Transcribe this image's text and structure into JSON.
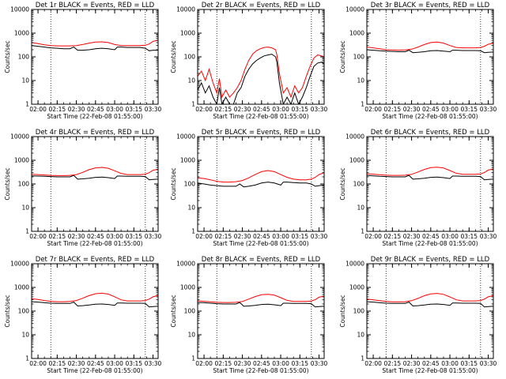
{
  "chart_data": {
    "type": "line",
    "scale": "log",
    "ylim": [
      1,
      10000
    ],
    "ytick_labels": [
      "1",
      "10",
      "100",
      "1000",
      "10000"
    ],
    "xtick_labels": [
      "02:00",
      "02:15",
      "02:30",
      "02:45",
      "03:00",
      "03:15",
      "03:30"
    ],
    "xlabel": "Start Time (22-Feb-08 01:55:00)",
    "ylabel": "Counts/sec",
    "x_range_minutes_after_start": [
      0,
      99
    ],
    "dotted_vertical_lines_minutes": [
      15,
      89
    ],
    "colors": {
      "events": "#000000",
      "lld": "#ff0000"
    },
    "panels": [
      {
        "title": "Det 1r BLACK = Events, RED = LLD",
        "series": [
          {
            "name": "Events",
            "x": [
              0,
              5,
              10,
              15,
              20,
              25,
              30,
              33,
              36,
              40,
              45,
              50,
              55,
              60,
              65,
              67,
              70,
              75,
              80,
              85,
              89,
              92,
              95,
              99
            ],
            "y": [
              300,
              280,
              260,
              240,
              230,
              220,
              220,
              260,
              190,
              190,
              200,
              220,
              230,
              220,
              200,
              260,
              260,
              250,
              250,
              250,
              230,
              180,
              190,
              190
            ]
          },
          {
            "name": "LLD",
            "x": [
              0,
              5,
              10,
              15,
              20,
              25,
              30,
              35,
              40,
              45,
              50,
              55,
              60,
              65,
              70,
              75,
              80,
              85,
              89,
              92,
              95,
              99
            ],
            "y": [
              400,
              360,
              320,
              300,
              290,
              290,
              290,
              300,
              330,
              380,
              420,
              430,
              400,
              330,
              300,
              300,
              300,
              300,
              310,
              350,
              450,
              500
            ]
          }
        ]
      },
      {
        "title": "Det 2r BLACK = Events, RED = LLD",
        "series": [
          {
            "name": "Events",
            "x": [
              0,
              3,
              6,
              9,
              12,
              15,
              17,
              19,
              22,
              25,
              28,
              31,
              34,
              37,
              40,
              43,
              46,
              49,
              52,
              55,
              58,
              61,
              62,
              64,
              67,
              70,
              73,
              76,
              79,
              82,
              85,
              88,
              91,
              94,
              97,
              99
            ],
            "y": [
              4,
              8,
              3,
              6,
              2,
              1,
              5,
              1,
              2,
              1,
              1,
              3,
              5,
              15,
              30,
              50,
              70,
              90,
              110,
              120,
              130,
              100,
              60,
              8,
              1,
              2,
              1,
              3,
              1,
              2,
              5,
              15,
              40,
              55,
              60,
              50
            ]
          },
          {
            "name": "LLD",
            "x": [
              0,
              3,
              6,
              9,
              12,
              15,
              17,
              19,
              22,
              25,
              28,
              31,
              34,
              37,
              40,
              43,
              46,
              49,
              52,
              55,
              58,
              61,
              62,
              64,
              67,
              70,
              73,
              76,
              79,
              82,
              85,
              88,
              91,
              94,
              97,
              99
            ],
            "y": [
              15,
              25,
              10,
              30,
              8,
              3,
              12,
              2,
              4,
              2,
              3,
              5,
              10,
              30,
              70,
              130,
              180,
              220,
              250,
              260,
              240,
              200,
              120,
              20,
              3,
              5,
              2,
              6,
              3,
              5,
              15,
              40,
              90,
              120,
              110,
              100
            ]
          }
        ]
      },
      {
        "title": "Det 3r BLACK = Events, RED = LLD",
        "series": [
          {
            "name": "Events",
            "x": [
              0,
              5,
              10,
              15,
              20,
              25,
              30,
              33,
              36,
              40,
              45,
              50,
              55,
              60,
              65,
              67,
              70,
              75,
              80,
              85,
              89,
              92,
              95,
              99
            ],
            "y": [
              200,
              190,
              180,
              175,
              170,
              165,
              165,
              190,
              150,
              155,
              165,
              180,
              185,
              175,
              165,
              190,
              190,
              185,
              185,
              185,
              180,
              150,
              155,
              160
            ]
          },
          {
            "name": "LLD",
            "x": [
              0,
              5,
              10,
              15,
              20,
              25,
              30,
              35,
              40,
              45,
              50,
              55,
              60,
              65,
              70,
              75,
              80,
              85,
              89,
              92,
              95,
              99
            ],
            "y": [
              260,
              240,
              220,
              200,
              195,
              190,
              195,
              210,
              260,
              330,
              400,
              420,
              380,
              300,
              250,
              240,
              240,
              240,
              250,
              280,
              340,
              380
            ]
          }
        ]
      },
      {
        "title": "Det 4r BLACK = Events, RED = LLD",
        "series": [
          {
            "name": "Events",
            "x": [
              0,
              5,
              10,
              15,
              20,
              25,
              30,
              33,
              36,
              40,
              45,
              50,
              55,
              60,
              65,
              67,
              70,
              75,
              80,
              85,
              89,
              92,
              95,
              99
            ],
            "y": [
              220,
              215,
              210,
              205,
              200,
              200,
              200,
              230,
              160,
              165,
              175,
              190,
              195,
              185,
              170,
              215,
              215,
              210,
              210,
              210,
              205,
              150,
              155,
              160
            ]
          },
          {
            "name": "LLD",
            "x": [
              0,
              5,
              10,
              15,
              20,
              25,
              30,
              35,
              40,
              45,
              50,
              55,
              60,
              65,
              70,
              75,
              80,
              85,
              89,
              92,
              95,
              99
            ],
            "y": [
              260,
              250,
              240,
              230,
              225,
              225,
              230,
              250,
              310,
              400,
              480,
              500,
              460,
              360,
              280,
              250,
              250,
              250,
              260,
              300,
              380,
              420
            ]
          }
        ]
      },
      {
        "title": "Det 5r BLACK = Events, RED = LLD",
        "series": [
          {
            "name": "Events",
            "x": [
              0,
              5,
              10,
              15,
              20,
              25,
              30,
              33,
              36,
              40,
              45,
              50,
              55,
              60,
              65,
              67,
              70,
              75,
              80,
              85,
              89,
              92,
              95,
              99
            ],
            "y": [
              110,
              100,
              90,
              85,
              80,
              80,
              80,
              100,
              75,
              80,
              90,
              110,
              120,
              110,
              90,
              120,
              120,
              115,
              110,
              110,
              100,
              80,
              85,
              90
            ]
          },
          {
            "name": "LLD",
            "x": [
              0,
              5,
              10,
              15,
              20,
              25,
              30,
              35,
              40,
              45,
              50,
              55,
              60,
              65,
              70,
              75,
              80,
              85,
              89,
              92,
              95,
              99
            ],
            "y": [
              180,
              170,
              150,
              130,
              120,
              120,
              125,
              140,
              180,
              250,
              330,
              370,
              330,
              250,
              190,
              160,
              150,
              150,
              160,
              190,
              250,
              300
            ]
          }
        ]
      },
      {
        "title": "Det 6r BLACK = Events, RED = LLD",
        "series": [
          {
            "name": "Events",
            "x": [
              0,
              5,
              10,
              15,
              20,
              25,
              30,
              33,
              36,
              40,
              45,
              50,
              55,
              60,
              65,
              67,
              70,
              75,
              80,
              85,
              89,
              92,
              95,
              99
            ],
            "y": [
              230,
              220,
              210,
              205,
              200,
              200,
              200,
              230,
              160,
              165,
              175,
              190,
              195,
              185,
              170,
              215,
              215,
              210,
              210,
              210,
              205,
              150,
              155,
              160
            ]
          },
          {
            "name": "LLD",
            "x": [
              0,
              5,
              10,
              15,
              20,
              25,
              30,
              35,
              40,
              45,
              50,
              55,
              60,
              65,
              70,
              75,
              80,
              85,
              89,
              92,
              95,
              99
            ],
            "y": [
              270,
              260,
              245,
              235,
              230,
              230,
              235,
              255,
              320,
              410,
              490,
              510,
              470,
              370,
              285,
              255,
              255,
              255,
              265,
              305,
              385,
              430
            ]
          }
        ]
      },
      {
        "title": "Det 7r BLACK = Events, RED = LLD",
        "series": [
          {
            "name": "Events",
            "x": [
              0,
              5,
              10,
              15,
              20,
              25,
              30,
              33,
              36,
              40,
              45,
              50,
              55,
              60,
              65,
              67,
              70,
              75,
              80,
              85,
              89,
              92,
              95,
              99
            ],
            "y": [
              250,
              240,
              225,
              215,
              210,
              210,
              210,
              240,
              165,
              170,
              180,
              195,
              200,
              190,
              175,
              220,
              220,
              215,
              215,
              215,
              210,
              150,
              155,
              160
            ]
          },
          {
            "name": "LLD",
            "x": [
              0,
              5,
              10,
              15,
              20,
              25,
              30,
              35,
              40,
              45,
              50,
              55,
              60,
              65,
              70,
              75,
              80,
              85,
              89,
              92,
              95,
              99
            ],
            "y": [
              330,
              310,
              280,
              260,
              250,
              250,
              255,
              280,
              350,
              450,
              540,
              570,
              520,
              400,
              300,
              270,
              270,
              270,
              280,
              320,
              400,
              460
            ]
          }
        ]
      },
      {
        "title": "Det 8r BLACK = Events, RED = LLD",
        "series": [
          {
            "name": "Events",
            "x": [
              0,
              5,
              10,
              15,
              20,
              25,
              30,
              33,
              36,
              40,
              45,
              50,
              55,
              60,
              65,
              67,
              70,
              75,
              80,
              85,
              89,
              92,
              95,
              99
            ],
            "y": [
              230,
              225,
              215,
              205,
              200,
              200,
              200,
              230,
              160,
              165,
              175,
              190,
              195,
              185,
              170,
              215,
              215,
              210,
              210,
              210,
              205,
              150,
              155,
              160
            ]
          },
          {
            "name": "LLD",
            "x": [
              0,
              5,
              10,
              15,
              20,
              25,
              30,
              35,
              40,
              45,
              50,
              55,
              60,
              65,
              70,
              75,
              80,
              85,
              89,
              92,
              95,
              99
            ],
            "y": [
              270,
              260,
              245,
              235,
              230,
              230,
              235,
              255,
              320,
              410,
              490,
              510,
              470,
              370,
              285,
              255,
              255,
              255,
              265,
              305,
              385,
              430
            ]
          }
        ]
      },
      {
        "title": "Det 9r BLACK = Events, RED = LLD",
        "series": [
          {
            "name": "Events",
            "x": [
              0,
              5,
              10,
              15,
              20,
              25,
              30,
              33,
              36,
              40,
              45,
              50,
              55,
              60,
              65,
              67,
              70,
              75,
              80,
              85,
              89,
              92,
              95,
              99
            ],
            "y": [
              250,
              240,
              225,
              215,
              210,
              210,
              210,
              240,
              165,
              170,
              180,
              195,
              200,
              190,
              175,
              220,
              220,
              215,
              215,
              215,
              210,
              150,
              155,
              160
            ]
          },
          {
            "name": "LLD",
            "x": [
              0,
              5,
              10,
              15,
              20,
              25,
              30,
              35,
              40,
              45,
              50,
              55,
              60,
              65,
              70,
              75,
              80,
              85,
              89,
              92,
              95,
              99
            ],
            "y": [
              320,
              300,
              275,
              255,
              245,
              245,
              250,
              275,
              345,
              445,
              530,
              560,
              510,
              395,
              300,
              270,
              270,
              270,
              280,
              320,
              400,
              450
            ]
          }
        ]
      }
    ]
  }
}
